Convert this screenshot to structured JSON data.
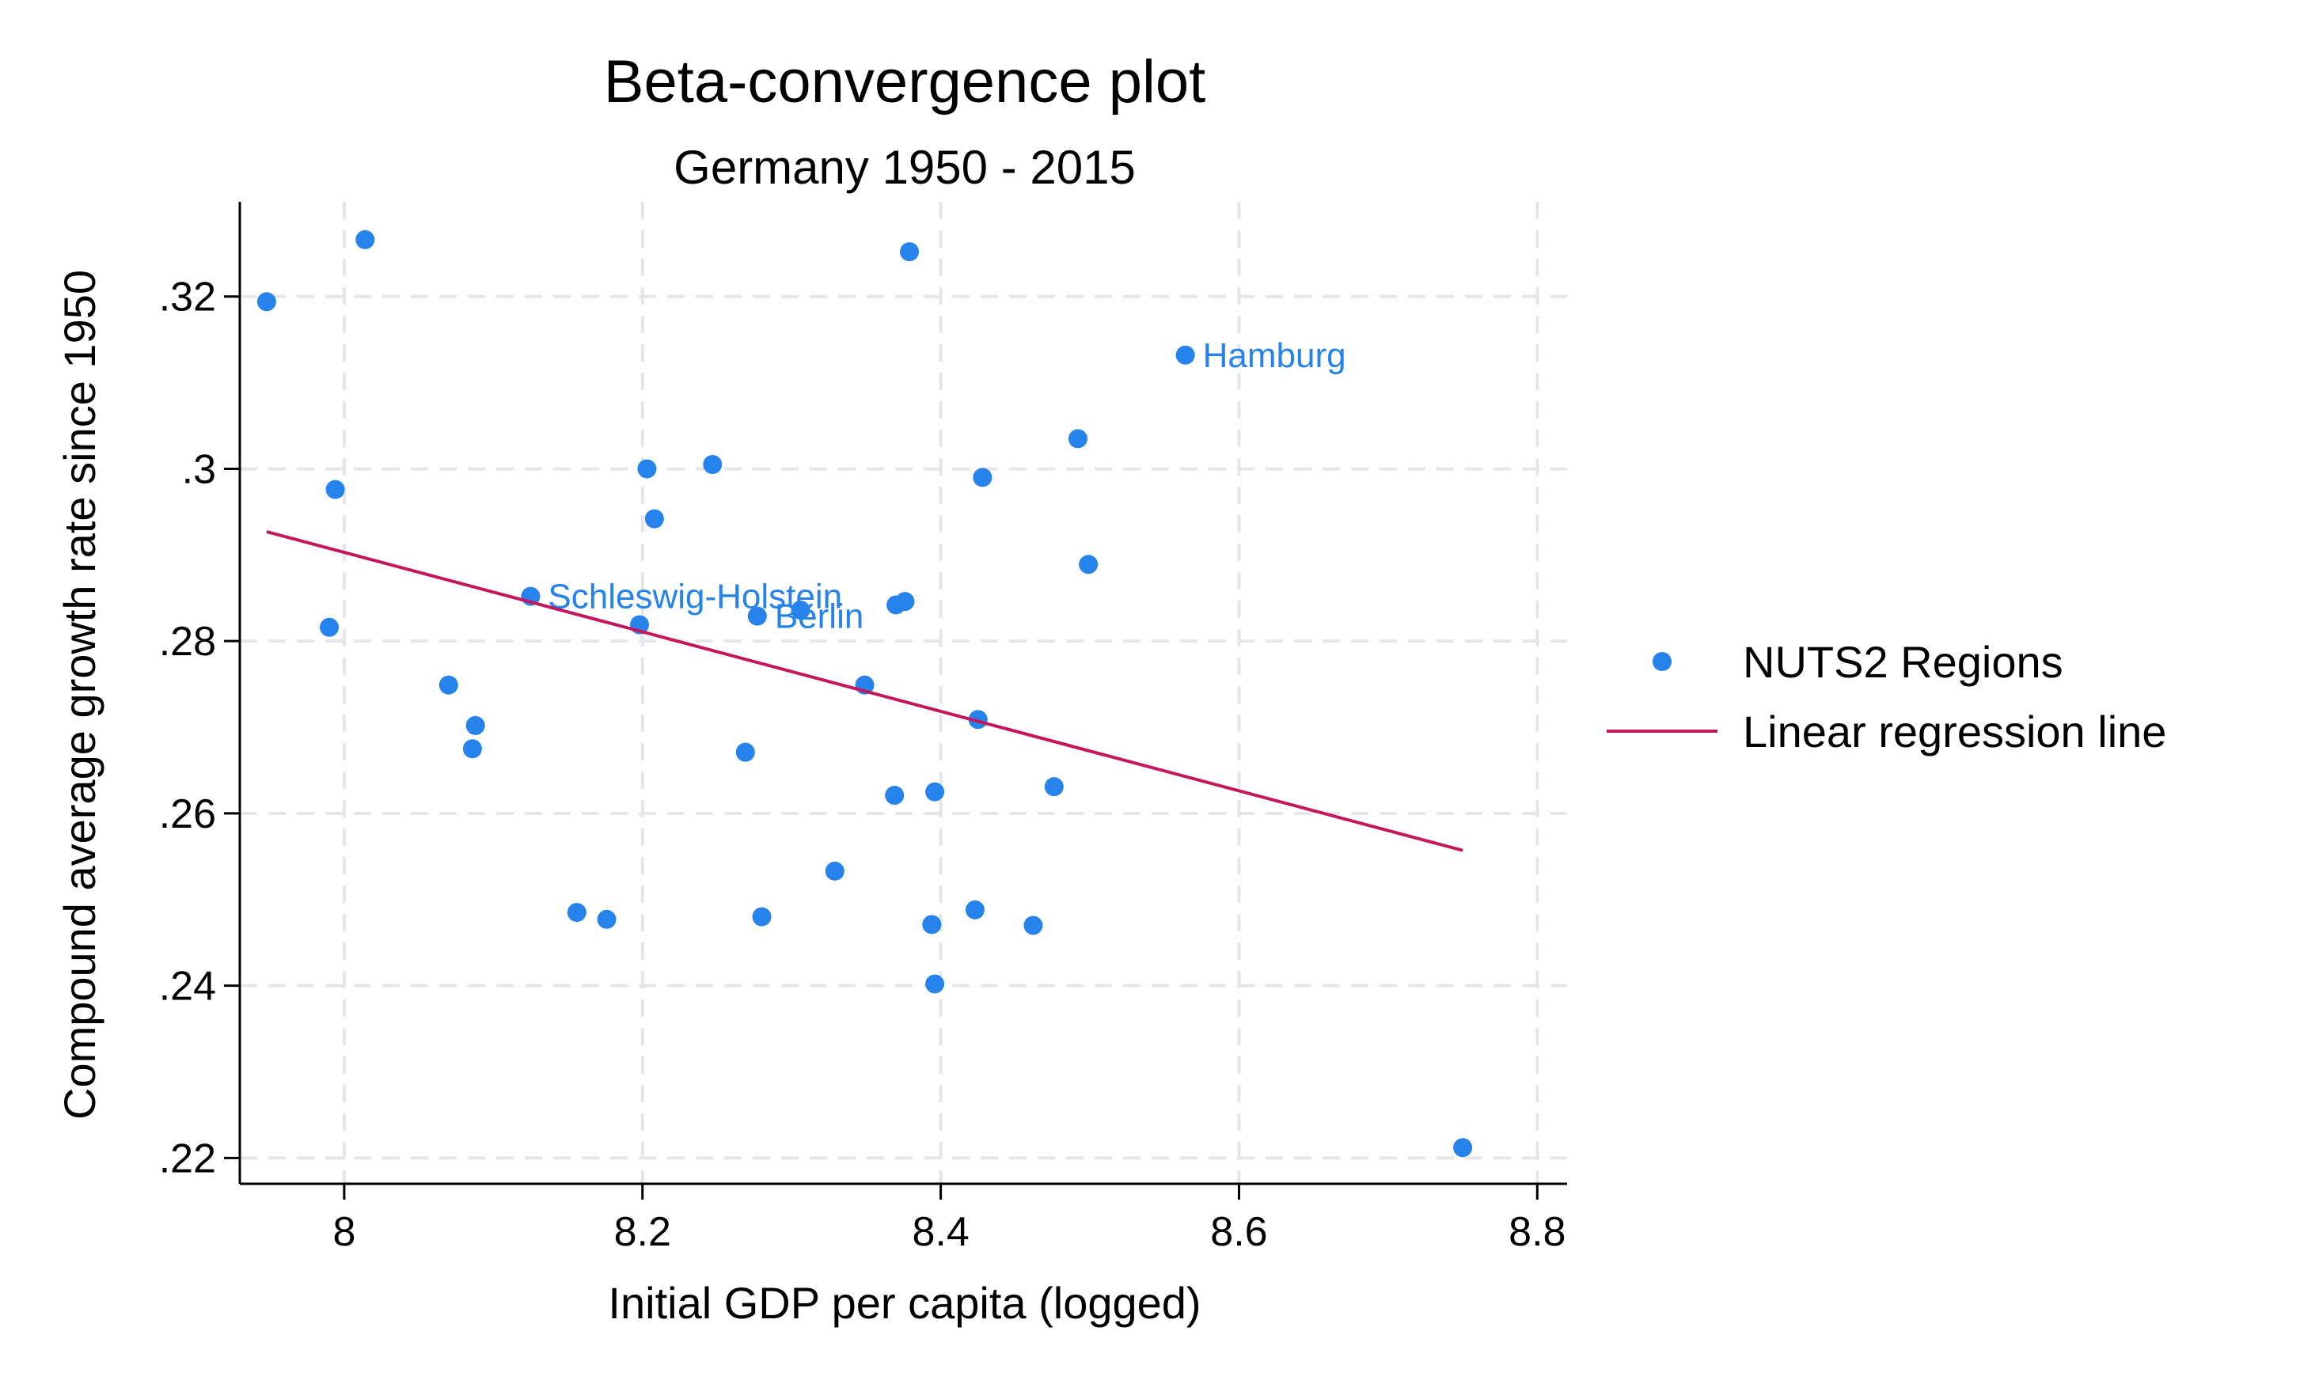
{
  "chart_data": {
    "type": "scatter",
    "title": "Beta-convergence plot",
    "subtitle": "Germany 1950 - 2015",
    "xlabel": "Initial GDP per capita (logged)",
    "ylabel": "Compound average growth rate since 1950",
    "xlim": [
      7.93,
      8.82
    ],
    "ylim": [
      0.217,
      0.331
    ],
    "xticks": [
      8.0,
      8.2,
      8.4,
      8.6,
      8.8
    ],
    "xtick_labels": [
      "8",
      "8.2",
      "8.4",
      "8.6",
      "8.8"
    ],
    "yticks": [
      0.22,
      0.24,
      0.26,
      0.28,
      0.3,
      0.32
    ],
    "ytick_labels": [
      ".22",
      ".24",
      ".26",
      ".28",
      ".3",
      ".32"
    ],
    "grid": true,
    "legend_position": "right",
    "series": [
      {
        "name": "NUTS2 Regions",
        "kind": "points",
        "color": "#2683eb",
        "points": [
          {
            "x": 7.948,
            "y": 0.3194,
            "label": ""
          },
          {
            "x": 8.014,
            "y": 0.3266,
            "label": ""
          },
          {
            "x": 7.994,
            "y": 0.2976,
            "label": ""
          },
          {
            "x": 7.99,
            "y": 0.2816,
            "label": ""
          },
          {
            "x": 8.07,
            "y": 0.2749,
            "label": ""
          },
          {
            "x": 8.088,
            "y": 0.2702,
            "label": ""
          },
          {
            "x": 8.086,
            "y": 0.2675,
            "label": ""
          },
          {
            "x": 8.125,
            "y": 0.2852,
            "label": "Schleswig-Holstein"
          },
          {
            "x": 8.156,
            "y": 0.2485,
            "label": ""
          },
          {
            "x": 8.176,
            "y": 0.2477,
            "label": ""
          },
          {
            "x": 8.198,
            "y": 0.2819,
            "label": ""
          },
          {
            "x": 8.203,
            "y": 0.3,
            "label": ""
          },
          {
            "x": 8.208,
            "y": 0.2942,
            "label": ""
          },
          {
            "x": 8.247,
            "y": 0.3005,
            "label": ""
          },
          {
            "x": 8.269,
            "y": 0.2671,
            "label": ""
          },
          {
            "x": 8.277,
            "y": 0.2829,
            "label": "Berlin"
          },
          {
            "x": 8.28,
            "y": 0.248,
            "label": ""
          },
          {
            "x": 8.306,
            "y": 0.2836,
            "label": ""
          },
          {
            "x": 8.329,
            "y": 0.2533,
            "label": ""
          },
          {
            "x": 8.349,
            "y": 0.2749,
            "label": ""
          },
          {
            "x": 8.369,
            "y": 0.2621,
            "label": ""
          },
          {
            "x": 8.37,
            "y": 0.2842,
            "label": ""
          },
          {
            "x": 8.376,
            "y": 0.2846,
            "label": ""
          },
          {
            "x": 8.379,
            "y": 0.3252,
            "label": ""
          },
          {
            "x": 8.394,
            "y": 0.2471,
            "label": ""
          },
          {
            "x": 8.396,
            "y": 0.2625,
            "label": ""
          },
          {
            "x": 8.396,
            "y": 0.2402,
            "label": ""
          },
          {
            "x": 8.423,
            "y": 0.2488,
            "label": ""
          },
          {
            "x": 8.425,
            "y": 0.2709,
            "label": ""
          },
          {
            "x": 8.428,
            "y": 0.299,
            "label": ""
          },
          {
            "x": 8.462,
            "y": 0.247,
            "label": ""
          },
          {
            "x": 8.476,
            "y": 0.2631,
            "label": ""
          },
          {
            "x": 8.492,
            "y": 0.3035,
            "label": ""
          },
          {
            "x": 8.499,
            "y": 0.2889,
            "label": ""
          },
          {
            "x": 8.564,
            "y": 0.3132,
            "label": "Hamburg"
          },
          {
            "x": 8.75,
            "y": 0.2212,
            "label": ""
          }
        ]
      },
      {
        "name": "Linear regression line",
        "kind": "line",
        "color": "#c4175c",
        "x": [
          7.948,
          8.75
        ],
        "y": [
          0.2927,
          0.2557
        ]
      }
    ]
  }
}
